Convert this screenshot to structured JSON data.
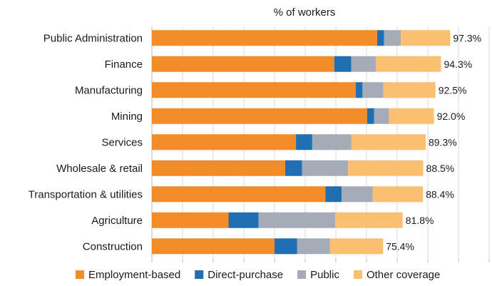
{
  "chart_data": {
    "type": "bar",
    "orientation": "horizontal",
    "stacked": true,
    "title": "% of workers",
    "categories": [
      "Public Administration",
      "Finance",
      "Manufacturing",
      "Mining",
      "Services",
      "Wholesale & retail",
      "Transportation & utilities",
      "Agriculture",
      "Construction"
    ],
    "series": [
      {
        "name": "Employment-based",
        "color": "#f28c28",
        "values": [
          73.5,
          59.5,
          66.5,
          70.2,
          47.0,
          43.5,
          56.6,
          25.0,
          40.0
        ]
      },
      {
        "name": "Direct-purchase",
        "color": "#1f6fb2",
        "values": [
          2.2,
          5.5,
          2.2,
          2.3,
          5.3,
          5.5,
          5.3,
          9.8,
          7.4
        ]
      },
      {
        "name": "Public",
        "color": "#a6abb8",
        "values": [
          5.5,
          8.1,
          6.8,
          4.8,
          12.7,
          15.0,
          10.1,
          25.0,
          10.7
        ]
      },
      {
        "name": "Other coverage",
        "color": "#fbbf72",
        "values": [
          16.1,
          21.2,
          17.0,
          14.7,
          24.3,
          24.5,
          16.4,
          22.0,
          17.3
        ]
      }
    ],
    "totals": [
      "97.3%",
      "94.3%",
      "92.5%",
      "92.0%",
      "89.3%",
      "88.5%",
      "88.4%",
      "81.8%",
      "75.4%"
    ],
    "xlim": [
      0,
      110
    ],
    "grid": true,
    "legend_position": "bottom"
  }
}
